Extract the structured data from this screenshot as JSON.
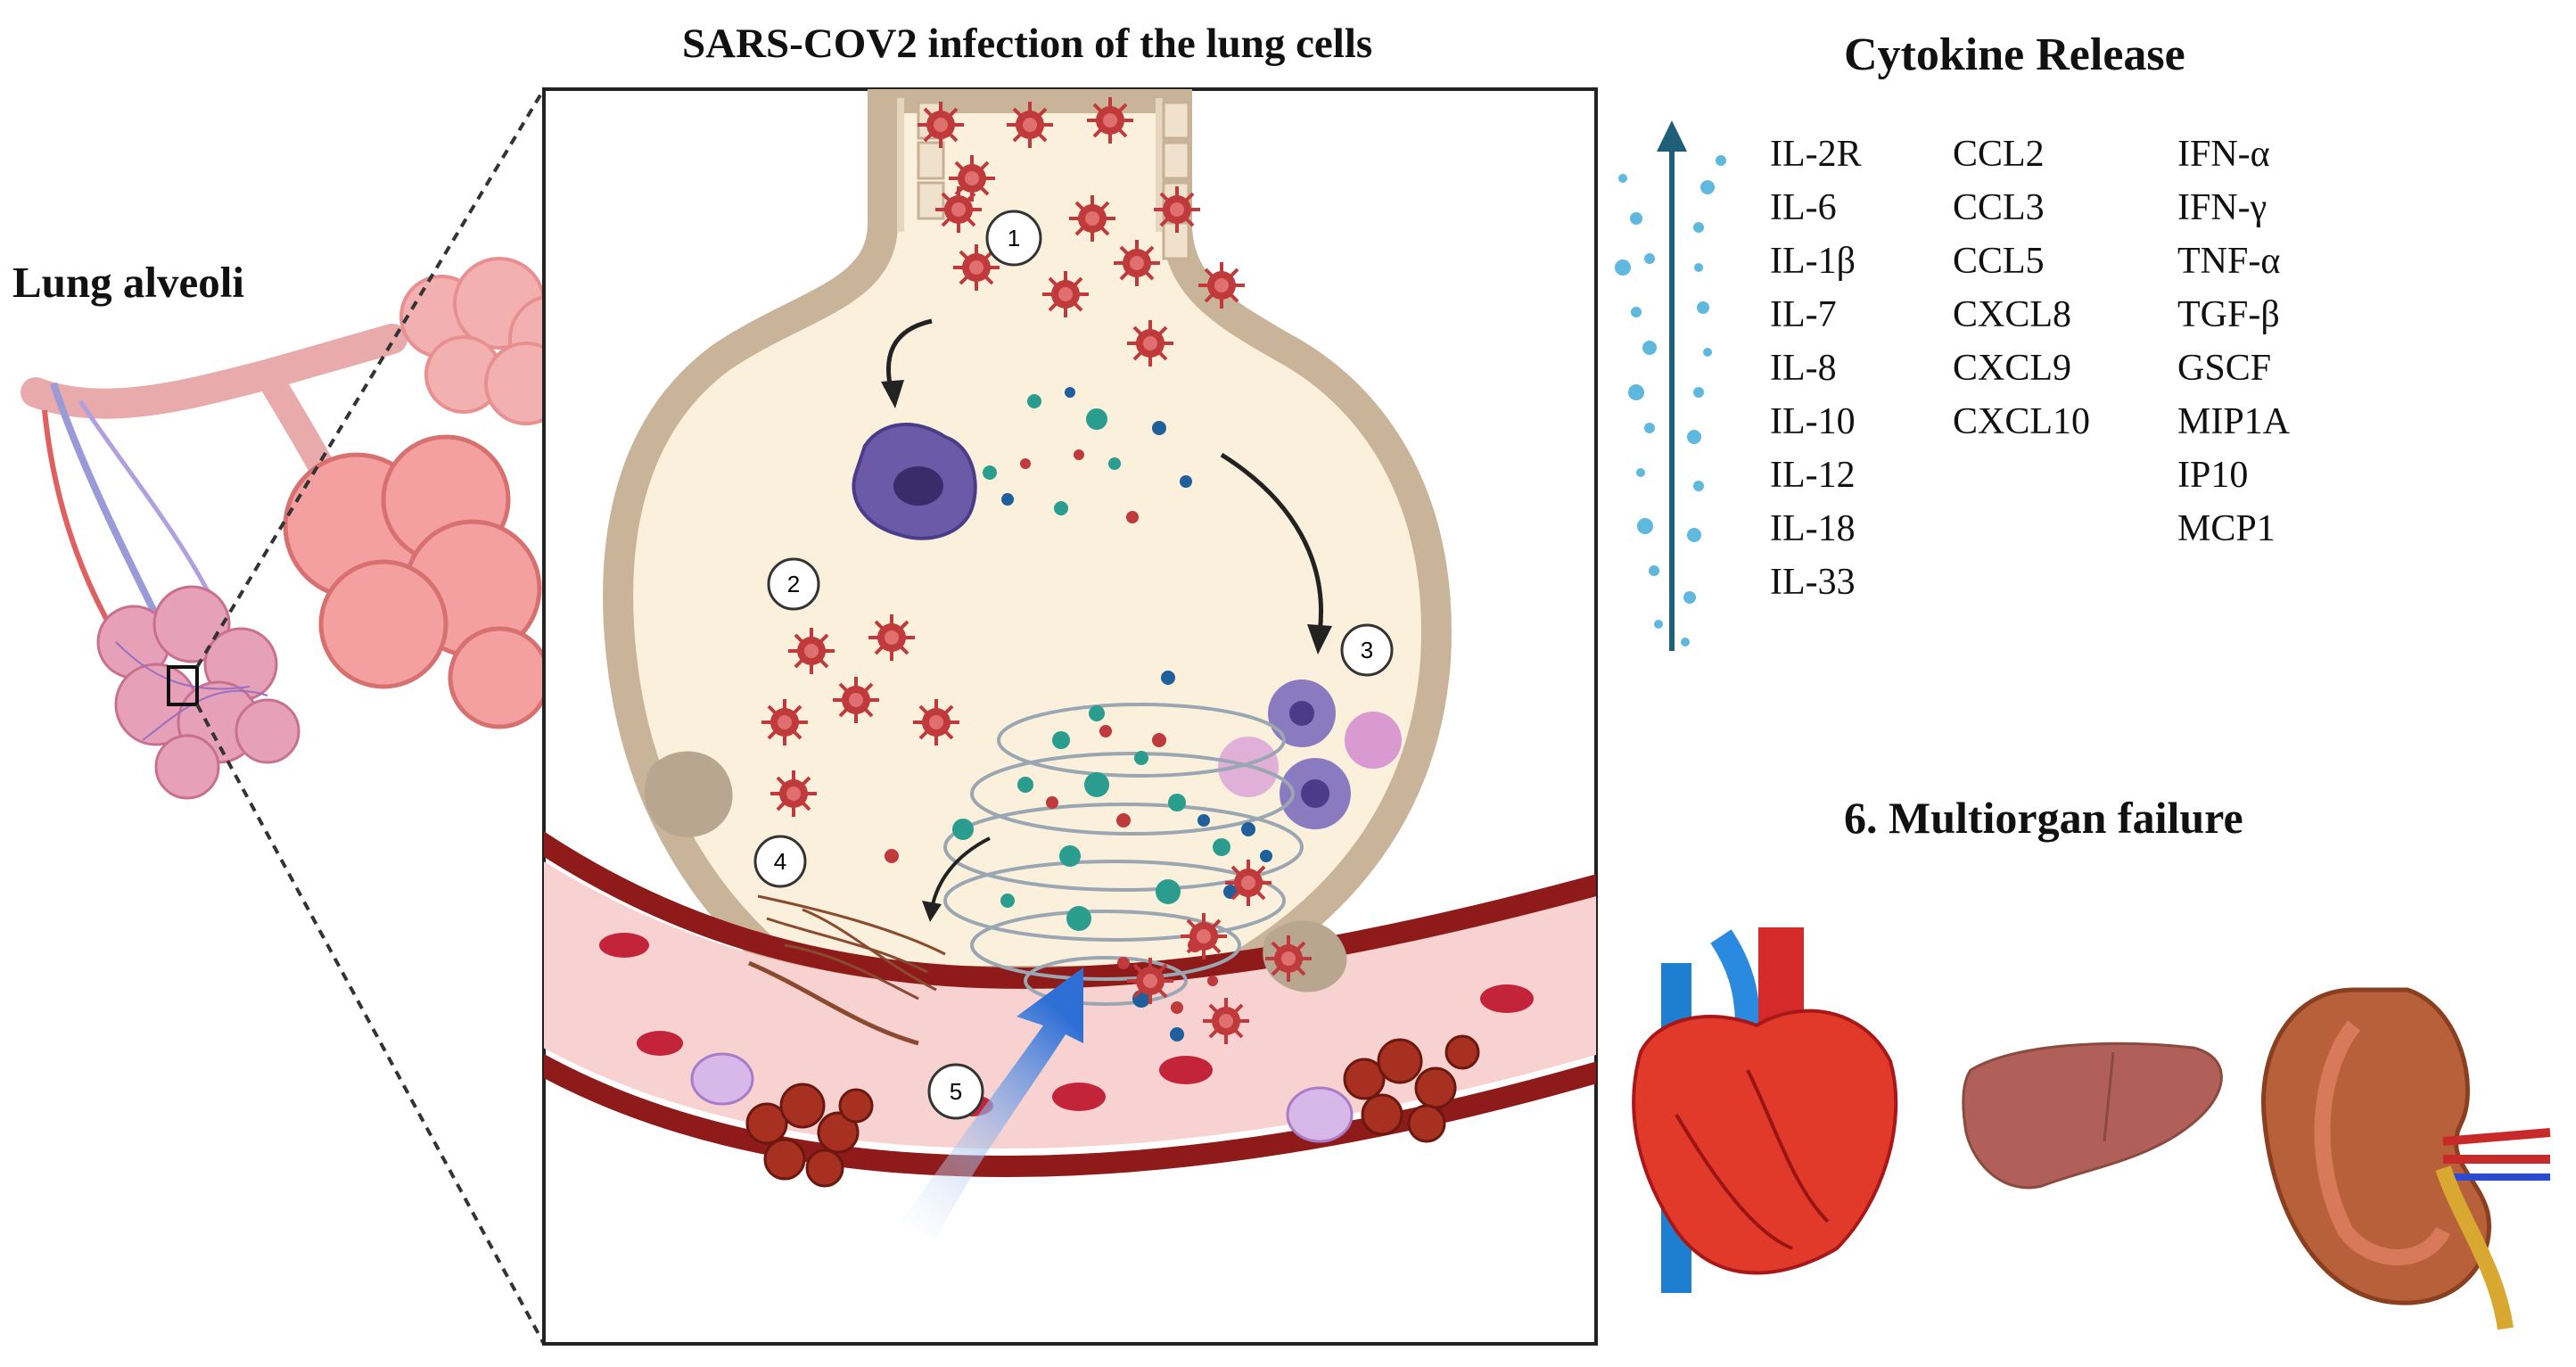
{
  "titles": {
    "main": "SARS-COV2 infection of the lung cells",
    "lung": "Lung alveoli",
    "cytokine": "Cytokine Release",
    "organ": "6. Multiorgan failure"
  },
  "steps": [
    "1",
    "2",
    "3",
    "4",
    "5"
  ],
  "cytokines": {
    "col1": [
      "IL-2R",
      "IL-6",
      "IL-1β",
      "IL-7",
      "IL-8",
      "IL-10",
      "IL-12",
      "IL-18",
      "IL-33"
    ],
    "col2": [
      "CCL2",
      "CCL3",
      "CCL5",
      "CXCL8",
      "CXCL9",
      "CXCL10"
    ],
    "col3": [
      "IFN-α",
      "IFN-γ",
      "TNF-α",
      "TGF-β",
      "GSCF",
      "MIP1A",
      "IP10",
      "MCP1"
    ]
  },
  "organs": [
    "heart-icon",
    "liver-icon",
    "kidney-icon"
  ],
  "colors": {
    "alveolus_fill": "#faf0dc",
    "alveolus_wall": "#c9b49a",
    "vessel": "#a01e1e",
    "virus": "#c0393b",
    "teal": "#2a9d8f",
    "blue": "#1f5f9b",
    "arrow": "#1f5f7a",
    "macrophage": "#6a5aa8"
  }
}
